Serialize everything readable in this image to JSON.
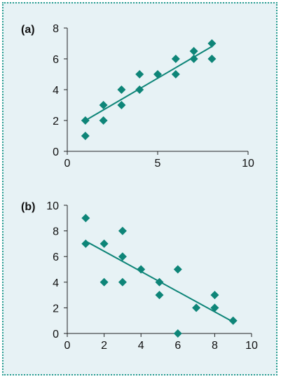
{
  "chart_data": [
    {
      "type": "scatter",
      "panel_label": "(a)",
      "xlim": [
        0,
        10
      ],
      "ylim": [
        0,
        8
      ],
      "xticks": [
        0,
        5,
        10
      ],
      "yticks": [
        0,
        2,
        4,
        6,
        8
      ],
      "grid": false,
      "color": "#0e8578",
      "points": [
        [
          1,
          1
        ],
        [
          1,
          2
        ],
        [
          2,
          2
        ],
        [
          2,
          3
        ],
        [
          3,
          3
        ],
        [
          3,
          4
        ],
        [
          4,
          4
        ],
        [
          4,
          5
        ],
        [
          5,
          5
        ],
        [
          6,
          5
        ],
        [
          6,
          6
        ],
        [
          7,
          6
        ],
        [
          7,
          6.5
        ],
        [
          8,
          6
        ],
        [
          8,
          7
        ]
      ],
      "trendline": [
        [
          1,
          2
        ],
        [
          8,
          6.8
        ]
      ]
    },
    {
      "type": "scatter",
      "panel_label": "(b)",
      "xlim": [
        0,
        10
      ],
      "ylim": [
        0,
        10
      ],
      "xticks": [
        0,
        2,
        4,
        6,
        8,
        10
      ],
      "yticks": [
        0,
        2,
        4,
        6,
        8,
        10
      ],
      "grid": false,
      "color": "#0e8578",
      "points": [
        [
          1,
          9
        ],
        [
          1,
          7
        ],
        [
          2,
          7
        ],
        [
          2,
          4
        ],
        [
          3,
          8
        ],
        [
          3,
          6
        ],
        [
          3,
          4
        ],
        [
          4,
          5
        ],
        [
          5,
          4
        ],
        [
          5,
          3
        ],
        [
          6,
          5
        ],
        [
          6,
          0
        ],
        [
          7,
          2
        ],
        [
          8,
          3
        ],
        [
          8,
          2
        ],
        [
          9,
          1
        ]
      ],
      "trendline": [
        [
          1,
          7.2
        ],
        [
          9,
          0.9
        ]
      ]
    }
  ]
}
